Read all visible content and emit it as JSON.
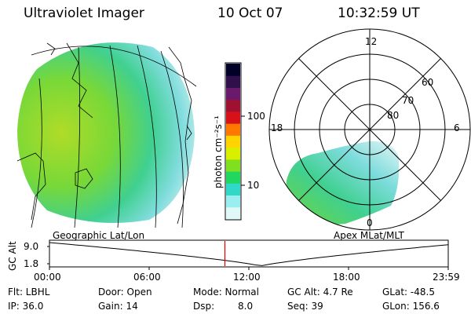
{
  "header": {
    "instrument": "Ultraviolet Imager",
    "date": "10 Oct 07",
    "time": "10:32:59 UT"
  },
  "colorbar": {
    "unit_label": "photon cm⁻²s⁻¹",
    "ticks": [
      "100",
      "10"
    ],
    "colors": [
      "#000028",
      "#30104a",
      "#6a1a6a",
      "#a01030",
      "#d81018",
      "#ff7800",
      "#ffd400",
      "#d8f000",
      "#80e020",
      "#20d860",
      "#30d8c8",
      "#9aeef0",
      "#e0f8f8"
    ]
  },
  "left_panel": {
    "caption": "Geographic Lat/Lon"
  },
  "right_panel": {
    "caption": "Apex MLat/MLT",
    "mlt_labels": {
      "top": "12",
      "left": "18",
      "right": "6",
      "bottom": "0"
    },
    "lat_labels": [
      "60",
      "70",
      "80"
    ]
  },
  "altitude_plot": {
    "ylabel": "GC Alt",
    "yticks": [
      "9.0",
      "1.8"
    ],
    "xticks": [
      "00:00",
      "06:00",
      "12:00",
      "18:00",
      "23:59"
    ],
    "current_time_hours": 10.55,
    "min_time_hours": 12.7,
    "marker_color": "#e00000"
  },
  "status": {
    "filter": "Flt: LBHL",
    "ip": "IP: 36.0",
    "door": "Door: Open",
    "gain": "Gain: 14",
    "mode": "Mode: Normal",
    "dsp_label": "Dsp:",
    "dsp_value": "8.0",
    "gc_alt": "GC Alt: 4.7 Re",
    "seq": "Seq: 39",
    "glat": "GLat: -48.5",
    "glon": "GLon: 156.6"
  }
}
